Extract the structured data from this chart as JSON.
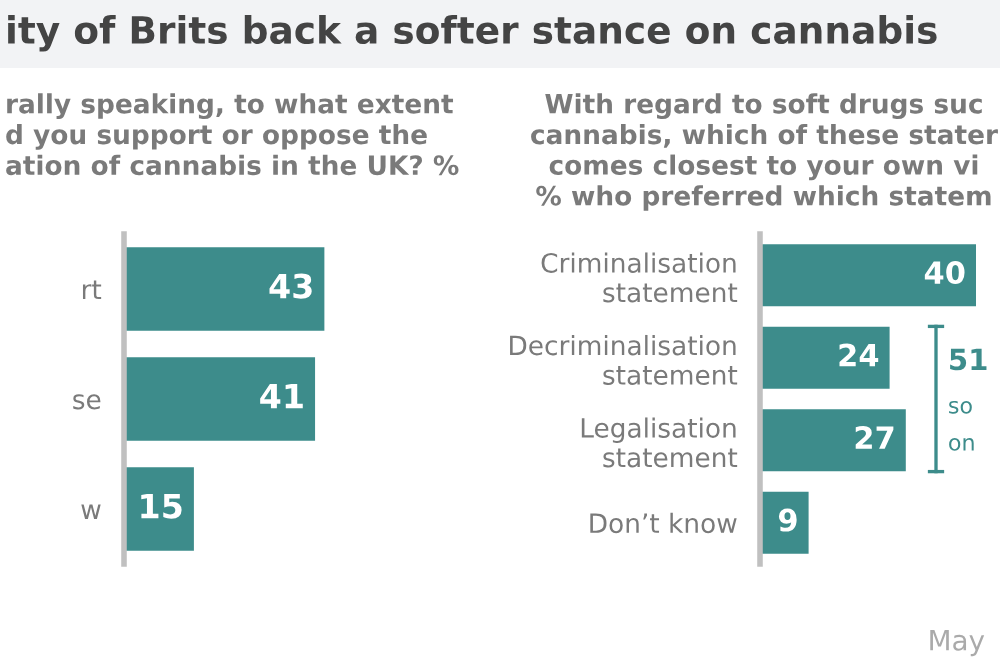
{
  "chart_data": [
    {
      "type": "bar",
      "orientation": "horizontal",
      "title": "ity of Brits back a softer stance on cannabis",
      "subtitle": "rally speaking, to what extent\nd you support or oppose the\nation of cannabis in the UK? %",
      "categories": [
        "rt",
        "se",
        "w"
      ],
      "values": [
        43,
        41,
        15
      ],
      "color": "#3d8c8b",
      "data_labels": true,
      "grid": false,
      "legend": false
    },
    {
      "type": "bar",
      "orientation": "horizontal",
      "subtitle": "With regard to soft drugs suc\ncannabis, which of these stater\ncomes closest to your own vi\n% who preferred which statem",
      "categories": [
        "Criminalisation\nstatement",
        "Decriminalisation\nstatement",
        "Legalisation\nstatement",
        "Don’t know"
      ],
      "values": [
        40,
        24,
        27,
        9
      ],
      "color": "#3d8c8b",
      "data_labels": true,
      "grid": false,
      "legend": false,
      "annotations": [
        "51",
        "so",
        "on",
        "May"
      ]
    }
  ]
}
